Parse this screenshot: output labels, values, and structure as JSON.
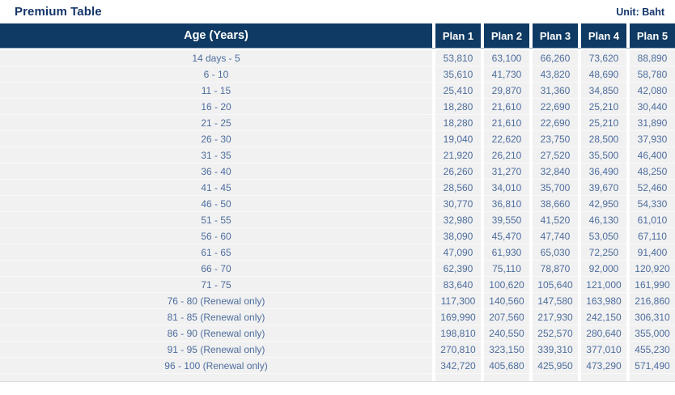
{
  "page": {
    "title": "Premium Table",
    "unit_label": "Unit: Baht"
  },
  "colors": {
    "header_bg": "#0e3a63",
    "header_text": "#ffffff",
    "title_text": "#14356b",
    "body_text": "#4d6d9d",
    "body_bg": "#f1f1f2"
  },
  "table": {
    "age_header": "Age (Years)",
    "plan_headers": [
      "Plan 1",
      "Plan 2",
      "Plan 3",
      "Plan 4",
      "Plan 5"
    ],
    "rows": [
      {
        "age": "14 days - 5",
        "values": [
          "53,810",
          "63,100",
          "66,260",
          "73,620",
          "88,890"
        ]
      },
      {
        "age": "6 - 10",
        "values": [
          "35,610",
          "41,730",
          "43,820",
          "48,690",
          "58,780"
        ]
      },
      {
        "age": "11 - 15",
        "values": [
          "25,410",
          "29,870",
          "31,360",
          "34,850",
          "42,080"
        ]
      },
      {
        "age": "16 - 20",
        "values": [
          "18,280",
          "21,610",
          "22,690",
          "25,210",
          "30,440"
        ]
      },
      {
        "age": "21 - 25",
        "values": [
          "18,280",
          "21,610",
          "22,690",
          "25,210",
          "31,890"
        ]
      },
      {
        "age": "26 - 30",
        "values": [
          "19,040",
          "22,620",
          "23,750",
          "28,500",
          "37,930"
        ]
      },
      {
        "age": "31 - 35",
        "values": [
          "21,920",
          "26,210",
          "27,520",
          "35,500",
          "46,400"
        ]
      },
      {
        "age": "36 - 40",
        "values": [
          "26,260",
          "31,270",
          "32,840",
          "36,490",
          "48,250"
        ]
      },
      {
        "age": "41 - 45",
        "values": [
          "28,560",
          "34,010",
          "35,700",
          "39,670",
          "52,460"
        ]
      },
      {
        "age": "46 - 50",
        "values": [
          "30,770",
          "36,810",
          "38,660",
          "42,950",
          "54,330"
        ]
      },
      {
        "age": "51 - 55",
        "values": [
          "32,980",
          "39,550",
          "41,520",
          "46,130",
          "61,010"
        ]
      },
      {
        "age": "56 - 60",
        "values": [
          "38,090",
          "45,470",
          "47,740",
          "53,050",
          "67,110"
        ]
      },
      {
        "age": "61 - 65",
        "values": [
          "47,090",
          "61,930",
          "65,030",
          "72,250",
          "91,400"
        ]
      },
      {
        "age": "66 - 70",
        "values": [
          "62,390",
          "75,110",
          "78,870",
          "92,000",
          "120,920"
        ]
      },
      {
        "age": "71 - 75",
        "values": [
          "83,640",
          "100,620",
          "105,640",
          "121,000",
          "161,990"
        ]
      },
      {
        "age": "76 - 80 (Renewal only)",
        "values": [
          "117,300",
          "140,560",
          "147,580",
          "163,980",
          "216,860"
        ]
      },
      {
        "age": "81 - 85 (Renewal only)",
        "values": [
          "169,990",
          "207,560",
          "217,930",
          "242,150",
          "306,310"
        ]
      },
      {
        "age": "86 - 90 (Renewal only)",
        "values": [
          "198,810",
          "240,550",
          "252,570",
          "280,640",
          "355,000"
        ]
      },
      {
        "age": "91 - 95 (Renewal only)",
        "values": [
          "270,810",
          "323,150",
          "339,310",
          "377,010",
          "455,230"
        ]
      },
      {
        "age": "96 - 100 (Renewal only)",
        "values": [
          "342,720",
          "405,680",
          "425,950",
          "473,290",
          "571,490"
        ]
      }
    ]
  },
  "chart_data": {
    "type": "table",
    "title": "Premium Table",
    "unit": "Baht",
    "columns": [
      "Age (Years)",
      "Plan 1",
      "Plan 2",
      "Plan 3",
      "Plan 4",
      "Plan 5"
    ],
    "categories": [
      "14 days - 5",
      "6 - 10",
      "11 - 15",
      "16 - 20",
      "21 - 25",
      "26 - 30",
      "31 - 35",
      "36 - 40",
      "41 - 45",
      "46 - 50",
      "51 - 55",
      "56 - 60",
      "61 - 65",
      "66 - 70",
      "71 - 75",
      "76 - 80 (Renewal only)",
      "81 - 85 (Renewal only)",
      "86 - 90 (Renewal only)",
      "91 - 95 (Renewal only)",
      "96 - 100 (Renewal only)"
    ],
    "series": [
      {
        "name": "Plan 1",
        "values": [
          53810,
          35610,
          25410,
          18280,
          18280,
          19040,
          21920,
          26260,
          28560,
          30770,
          32980,
          38090,
          47090,
          62390,
          83640,
          117300,
          169990,
          198810,
          270810,
          342720
        ]
      },
      {
        "name": "Plan 2",
        "values": [
          63100,
          41730,
          29870,
          21610,
          21610,
          22620,
          26210,
          31270,
          34010,
          36810,
          39550,
          45470,
          61930,
          75110,
          100620,
          140560,
          207560,
          240550,
          323150,
          405680
        ]
      },
      {
        "name": "Plan 3",
        "values": [
          66260,
          43820,
          31360,
          22690,
          22690,
          23750,
          27520,
          32840,
          35700,
          38660,
          41520,
          47740,
          65030,
          78870,
          105640,
          147580,
          217930,
          252570,
          339310,
          425950
        ]
      },
      {
        "name": "Plan 4",
        "values": [
          73620,
          48690,
          34850,
          25210,
          25210,
          28500,
          35500,
          36490,
          39670,
          42950,
          46130,
          53050,
          72250,
          92000,
          121000,
          163980,
          242150,
          280640,
          377010,
          473290
        ]
      },
      {
        "name": "Plan 5",
        "values": [
          88890,
          58780,
          42080,
          30440,
          31890,
          37930,
          46400,
          48250,
          52460,
          54330,
          61010,
          67110,
          91400,
          120920,
          161990,
          216860,
          306310,
          355000,
          455230,
          571490
        ]
      }
    ]
  }
}
